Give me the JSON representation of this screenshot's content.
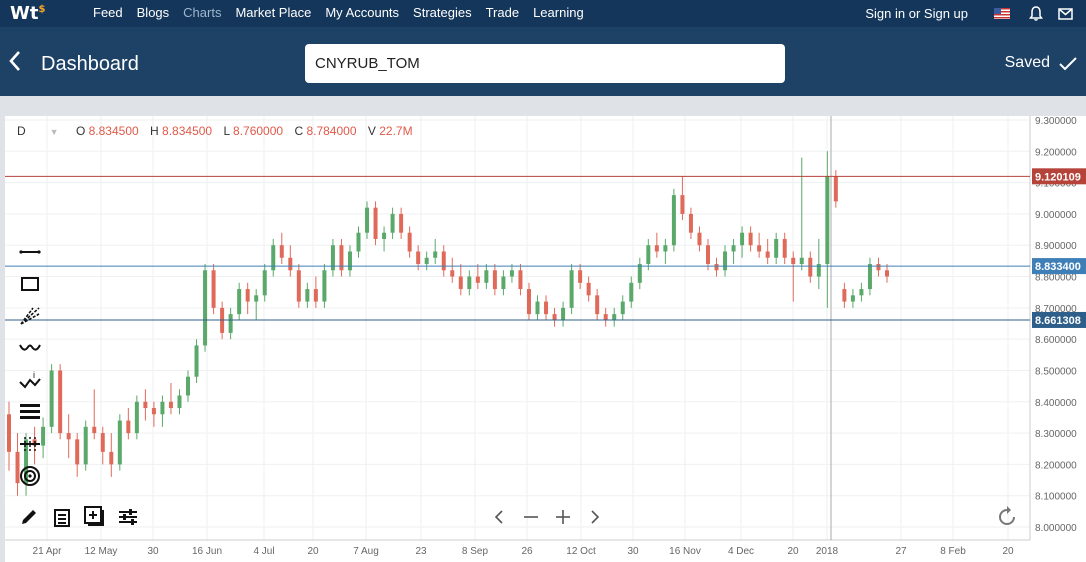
{
  "header": {
    "logo": "Wt",
    "logo_sup": "$",
    "nav": [
      {
        "label": "Feed",
        "active": false
      },
      {
        "label": "Blogs",
        "active": false
      },
      {
        "label": "Charts",
        "active": true
      },
      {
        "label": "Market Place",
        "active": false
      },
      {
        "label": "My Accounts",
        "active": false
      },
      {
        "label": "Strategies",
        "active": false
      },
      {
        "label": "Trade",
        "active": false
      },
      {
        "label": "Learning",
        "active": false
      }
    ],
    "signin": "Sign in or Sign up",
    "icons": [
      "flag-us-icon",
      "bell-icon",
      "mail-icon"
    ]
  },
  "subheader": {
    "title": "Dashboard",
    "symbol": "CNYRUB_TOM",
    "saved": "Saved"
  },
  "ohlc": {
    "interval": "D",
    "o_label": "O",
    "o": "8.834500",
    "h_label": "H",
    "h": "8.834500",
    "l_label": "L",
    "l": "8.760000",
    "c_label": "C",
    "c": "8.784000",
    "v_label": "V",
    "v": "22.7M"
  },
  "price_axis": [
    "9.300000",
    "9.200000",
    "9.100000",
    "9.000000",
    "8.900000",
    "8.800000",
    "8.700000",
    "8.600000",
    "8.500000",
    "8.400000",
    "8.300000",
    "8.200000",
    "8.100000",
    "8.000000"
  ],
  "time_axis": [
    "21 Apr",
    "12 May",
    "30",
    "16 Jun",
    "4 Jul",
    "20",
    "7 Aug",
    "23",
    "8 Sep",
    "26",
    "12 Oct",
    "30",
    "16 Nov",
    "4 Dec",
    "20",
    "2018",
    "27",
    "8 Feb",
    "20"
  ],
  "price_lines": [
    {
      "value": "9.120109",
      "color": "#b5433a"
    },
    {
      "value": "8.833400",
      "color": "#3f7fb8"
    },
    {
      "value": "8.661308",
      "color": "#2d5f8a"
    }
  ],
  "colors": {
    "up": "#5aa86a",
    "down": "#e06a5a",
    "topbar": "#14365a",
    "subbar": "#1e4166"
  },
  "chart_data": {
    "type": "candlestick",
    "ylim": [
      8.0,
      9.3
    ],
    "price_lines": [
      9.120109,
      8.8334,
      8.661308
    ],
    "ohlc": [
      [
        8.36,
        8.4,
        8.18,
        8.24
      ],
      [
        8.24,
        8.3,
        8.1,
        8.14
      ],
      [
        8.14,
        8.3,
        8.1,
        8.28
      ],
      [
        8.28,
        8.32,
        8.2,
        8.26
      ],
      [
        8.26,
        8.35,
        8.22,
        8.32
      ],
      [
        8.32,
        8.52,
        8.3,
        8.5
      ],
      [
        8.5,
        8.52,
        8.28,
        8.3
      ],
      [
        8.3,
        8.36,
        8.22,
        8.28
      ],
      [
        8.28,
        8.3,
        8.16,
        8.2
      ],
      [
        8.2,
        8.34,
        8.18,
        8.32
      ],
      [
        8.32,
        8.44,
        8.28,
        8.3
      ],
      [
        8.3,
        8.32,
        8.2,
        8.24
      ],
      [
        8.24,
        8.3,
        8.16,
        8.2
      ],
      [
        8.2,
        8.36,
        8.18,
        8.34
      ],
      [
        8.34,
        8.38,
        8.28,
        8.3
      ],
      [
        8.3,
        8.42,
        8.28,
        8.4
      ],
      [
        8.4,
        8.44,
        8.34,
        8.38
      ],
      [
        8.38,
        8.4,
        8.32,
        8.36
      ],
      [
        8.36,
        8.42,
        8.32,
        8.4
      ],
      [
        8.4,
        8.46,
        8.36,
        8.38
      ],
      [
        8.38,
        8.44,
        8.36,
        8.42
      ],
      [
        8.42,
        8.5,
        8.4,
        8.48
      ],
      [
        8.48,
        8.6,
        8.46,
        8.58
      ],
      [
        8.58,
        8.84,
        8.56,
        8.82
      ],
      [
        8.82,
        8.84,
        8.68,
        8.7
      ],
      [
        8.7,
        8.72,
        8.6,
        8.62
      ],
      [
        8.62,
        8.7,
        8.6,
        8.68
      ],
      [
        8.68,
        8.78,
        8.66,
        8.76
      ],
      [
        8.76,
        8.78,
        8.68,
        8.72
      ],
      [
        8.72,
        8.76,
        8.66,
        8.74
      ],
      [
        8.74,
        8.84,
        8.72,
        8.82
      ],
      [
        8.82,
        8.92,
        8.8,
        8.9
      ],
      [
        8.9,
        8.94,
        8.84,
        8.86
      ],
      [
        8.86,
        8.9,
        8.8,
        8.82
      ],
      [
        8.82,
        8.84,
        8.7,
        8.72
      ],
      [
        8.72,
        8.78,
        8.7,
        8.76
      ],
      [
        8.76,
        8.8,
        8.7,
        8.72
      ],
      [
        8.72,
        8.84,
        8.7,
        8.82
      ],
      [
        8.82,
        8.92,
        8.8,
        8.9
      ],
      [
        8.9,
        8.92,
        8.8,
        8.82
      ],
      [
        8.82,
        8.9,
        8.8,
        8.88
      ],
      [
        8.88,
        8.96,
        8.86,
        8.94
      ],
      [
        8.94,
        9.04,
        8.92,
        9.02
      ],
      [
        9.02,
        9.04,
        8.9,
        8.92
      ],
      [
        8.92,
        8.96,
        8.88,
        8.94
      ],
      [
        8.94,
        9.02,
        8.92,
        9.0
      ],
      [
        9.0,
        9.02,
        8.92,
        8.94
      ],
      [
        8.94,
        8.96,
        8.86,
        8.88
      ],
      [
        8.88,
        8.9,
        8.82,
        8.84
      ],
      [
        8.84,
        8.88,
        8.82,
        8.86
      ],
      [
        8.86,
        8.92,
        8.84,
        8.88
      ],
      [
        8.88,
        8.9,
        8.8,
        8.82
      ],
      [
        8.82,
        8.86,
        8.78,
        8.8
      ],
      [
        8.8,
        8.84,
        8.74,
        8.76
      ],
      [
        8.76,
        8.82,
        8.74,
        8.8
      ],
      [
        8.8,
        8.84,
        8.76,
        8.78
      ],
      [
        8.78,
        8.84,
        8.76,
        8.82
      ],
      [
        8.82,
        8.84,
        8.74,
        8.76
      ],
      [
        8.76,
        8.82,
        8.74,
        8.8
      ],
      [
        8.8,
        8.84,
        8.78,
        8.82
      ],
      [
        8.82,
        8.84,
        8.74,
        8.76
      ],
      [
        8.76,
        8.78,
        8.66,
        8.68
      ],
      [
        8.68,
        8.74,
        8.66,
        8.72
      ],
      [
        8.72,
        8.74,
        8.66,
        8.68
      ],
      [
        8.68,
        8.7,
        8.64,
        8.66
      ],
      [
        8.66,
        8.72,
        8.64,
        8.7
      ],
      [
        8.7,
        8.84,
        8.68,
        8.82
      ],
      [
        8.82,
        8.84,
        8.76,
        8.78
      ],
      [
        8.78,
        8.8,
        8.72,
        8.74
      ],
      [
        8.74,
        8.76,
        8.66,
        8.68
      ],
      [
        8.68,
        8.7,
        8.64,
        8.66
      ],
      [
        8.66,
        8.7,
        8.64,
        8.68
      ],
      [
        8.68,
        8.74,
        8.66,
        8.72
      ],
      [
        8.72,
        8.8,
        8.7,
        8.78
      ],
      [
        8.78,
        8.86,
        8.76,
        8.84
      ],
      [
        8.84,
        8.92,
        8.82,
        8.9
      ],
      [
        8.9,
        8.94,
        8.86,
        8.88
      ],
      [
        8.88,
        8.92,
        8.84,
        8.9
      ],
      [
        8.9,
        9.08,
        8.88,
        9.06
      ],
      [
        9.06,
        9.12,
        8.98,
        9.0
      ],
      [
        9.0,
        9.02,
        8.92,
        8.94
      ],
      [
        8.94,
        8.96,
        8.88,
        8.9
      ],
      [
        8.9,
        8.92,
        8.82,
        8.84
      ],
      [
        8.84,
        8.86,
        8.8,
        8.82
      ],
      [
        8.82,
        8.9,
        8.8,
        8.88
      ],
      [
        8.88,
        8.92,
        8.84,
        8.9
      ],
      [
        8.9,
        8.96,
        8.86,
        8.94
      ],
      [
        8.94,
        8.96,
        8.88,
        8.9
      ],
      [
        8.9,
        8.94,
        8.86,
        8.88
      ],
      [
        8.88,
        8.92,
        8.84,
        8.86
      ],
      [
        8.86,
        8.94,
        8.84,
        8.92
      ],
      [
        8.92,
        8.94,
        8.84,
        8.86
      ],
      [
        8.86,
        8.88,
        8.72,
        8.84
      ],
      [
        8.84,
        9.18,
        8.82,
        8.86
      ],
      [
        8.86,
        8.88,
        8.78,
        8.8
      ],
      [
        8.8,
        8.92,
        8.76,
        8.84
      ],
      [
        8.84,
        9.2,
        8.7,
        9.12
      ],
      [
        9.12,
        9.14,
        9.02,
        9.04
      ],
      [
        8.76,
        8.78,
        8.7,
        8.72
      ],
      [
        8.72,
        8.76,
        8.7,
        8.74
      ],
      [
        8.74,
        8.78,
        8.72,
        8.76
      ],
      [
        8.76,
        8.86,
        8.74,
        8.84
      ],
      [
        8.84,
        8.86,
        8.8,
        8.82
      ],
      [
        8.82,
        8.84,
        8.78,
        8.8
      ]
    ]
  }
}
